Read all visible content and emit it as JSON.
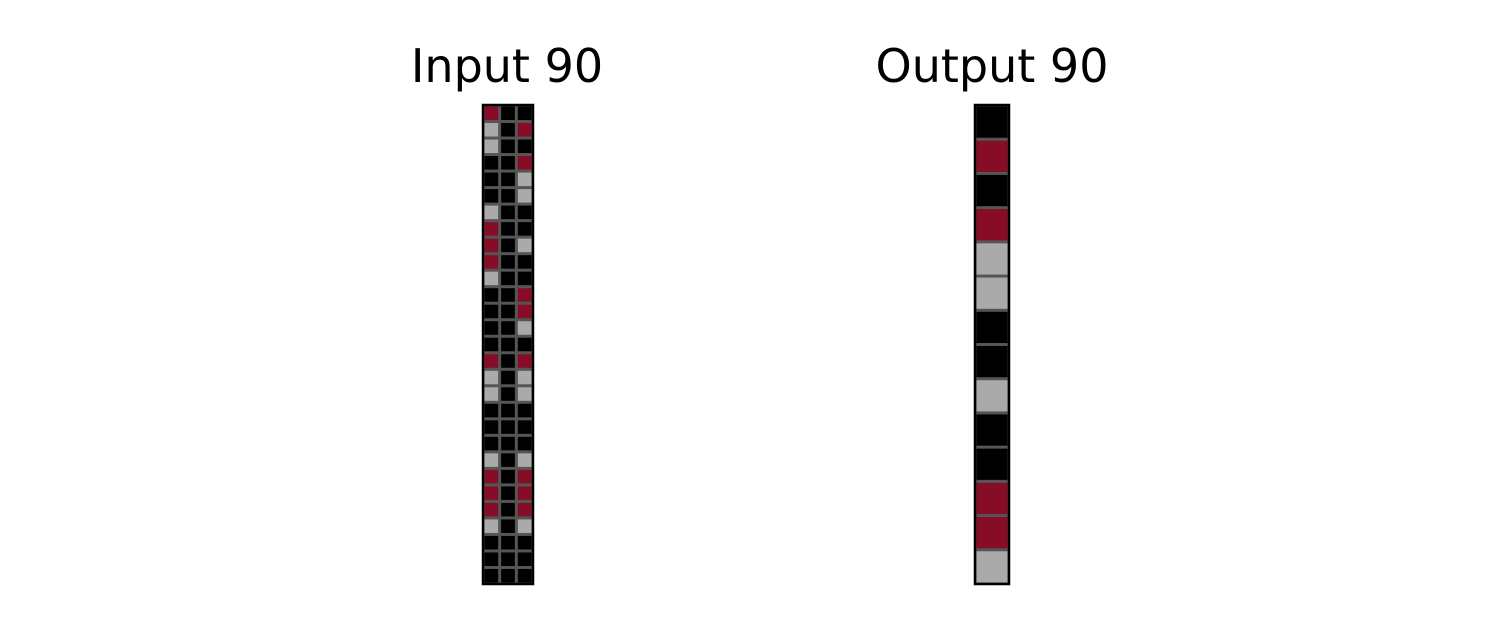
{
  "input_panel": {
    "title": "Input 90",
    "grid": [
      [
        2,
        0,
        0
      ],
      [
        1,
        0,
        2
      ],
      [
        1,
        0,
        0
      ],
      [
        0,
        0,
        2
      ],
      [
        0,
        0,
        1
      ],
      [
        0,
        0,
        1
      ],
      [
        1,
        0,
        0
      ],
      [
        2,
        0,
        0
      ],
      [
        2,
        0,
        1
      ],
      [
        2,
        0,
        0
      ],
      [
        1,
        0,
        0
      ],
      [
        0,
        0,
        2
      ],
      [
        0,
        0,
        2
      ],
      [
        0,
        0,
        1
      ],
      [
        0,
        0,
        0
      ],
      [
        2,
        0,
        2
      ],
      [
        1,
        0,
        1
      ],
      [
        1,
        0,
        1
      ],
      [
        0,
        0,
        0
      ],
      [
        0,
        0,
        0
      ],
      [
        0,
        0,
        0
      ],
      [
        1,
        0,
        1
      ],
      [
        2,
        0,
        2
      ],
      [
        2,
        0,
        2
      ],
      [
        2,
        0,
        2
      ],
      [
        1,
        0,
        1
      ],
      [
        0,
        0,
        0
      ],
      [
        0,
        0,
        0
      ],
      [
        0,
        0,
        0
      ]
    ]
  },
  "output_panel": {
    "title": "Output 90",
    "grid": [
      [
        0
      ],
      [
        2
      ],
      [
        0
      ],
      [
        2
      ],
      [
        1
      ],
      [
        1
      ],
      [
        0
      ],
      [
        0
      ],
      [
        1
      ],
      [
        0
      ],
      [
        0
      ],
      [
        2
      ],
      [
        2
      ],
      [
        1
      ]
    ]
  },
  "palette": {
    "0": "#000000",
    "1": "#aaaaaa",
    "2": "#870c25",
    "grid_line": "#555555",
    "border": "#000000"
  }
}
